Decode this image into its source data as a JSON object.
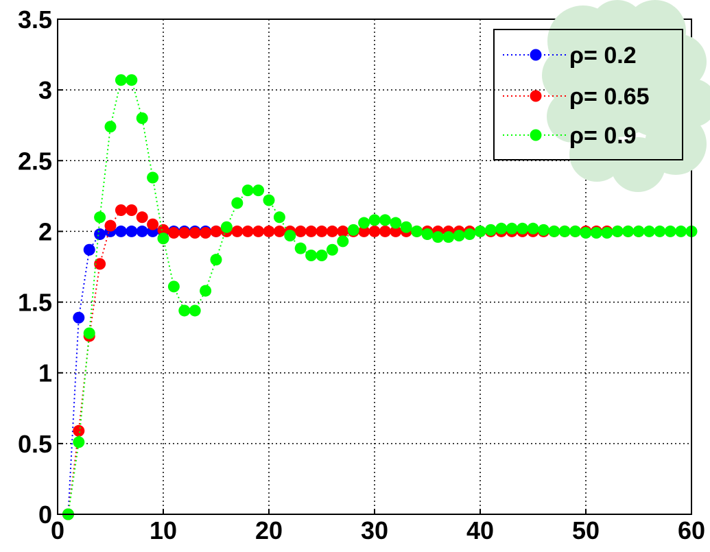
{
  "colors": {
    "blue": "#0000ff",
    "red": "#ff0000",
    "green": "#00ff00",
    "legend_blob": "#d5ecd6",
    "background": "#ffffff",
    "axes": "#000000"
  },
  "chart_data": {
    "type": "line",
    "title": "",
    "xlabel": "",
    "ylabel": "",
    "xlim": [
      0,
      60
    ],
    "ylim": [
      0,
      3.5
    ],
    "xticks": [
      "0",
      "10",
      "20",
      "30",
      "40",
      "50",
      "60"
    ],
    "yticks": [
      "0",
      "0.5",
      "1",
      "1.5",
      "2",
      "2.5",
      "3",
      "3.5"
    ],
    "grid": true,
    "line_style": "dotted with filled circle markers",
    "legend_position": "top-right",
    "series": [
      {
        "name": "ρ= 0.2",
        "color": "#0000ff",
        "x": [
          1,
          2,
          3,
          4,
          5,
          6,
          7,
          8,
          9,
          10,
          11,
          12,
          13,
          14,
          15
        ],
        "y": [
          0.0,
          1.39,
          1.87,
          1.98,
          2.0,
          2.0,
          2.0,
          2.0,
          2.0,
          2.0,
          2.0,
          2.0,
          2.0,
          2.0,
          2.0
        ]
      },
      {
        "name": "ρ= 0.65",
        "color": "#ff0000",
        "x": [
          1,
          2,
          3,
          4,
          5,
          6,
          7,
          8,
          9,
          10,
          11,
          12,
          13,
          14,
          15,
          16,
          17,
          18,
          19,
          20,
          21,
          22,
          23,
          24,
          25,
          26,
          27,
          28,
          29,
          30,
          31,
          32,
          33,
          34,
          35,
          36,
          37,
          38,
          39,
          40,
          41,
          42,
          43,
          44,
          45,
          46,
          47,
          48,
          49,
          50,
          51,
          52,
          53,
          54,
          55
        ],
        "y": [
          0.0,
          0.59,
          1.26,
          1.77,
          2.04,
          2.15,
          2.15,
          2.1,
          2.05,
          2.01,
          1.99,
          1.99,
          1.99,
          1.99,
          2.0,
          2.0,
          2.0,
          2.0,
          2.0,
          2.0,
          2.0,
          2.0,
          2.0,
          2.0,
          2.0,
          2.0,
          2.0,
          2.0,
          2.0,
          2.0,
          2.0,
          2.0,
          2.0,
          2.0,
          2.0,
          2.0,
          2.0,
          2.0,
          2.0,
          2.0,
          2.0,
          2.0,
          2.0,
          2.0,
          2.0,
          2.0,
          2.0,
          2.0,
          2.0,
          2.0,
          2.0,
          2.0,
          2.0,
          2.0,
          2.0
        ]
      },
      {
        "name": "ρ= 0.9",
        "color": "#00ff00",
        "x": [
          1,
          2,
          3,
          4,
          5,
          6,
          7,
          8,
          9,
          10,
          11,
          12,
          13,
          14,
          15,
          16,
          17,
          18,
          19,
          20,
          21,
          22,
          23,
          24,
          25,
          26,
          27,
          28,
          29,
          30,
          31,
          32,
          33,
          34,
          35,
          36,
          37,
          38,
          39,
          40,
          41,
          42,
          43,
          44,
          45,
          46,
          47,
          48,
          49,
          50,
          51,
          52,
          53,
          54,
          55,
          56,
          57,
          58,
          59,
          60
        ],
        "y": [
          0.0,
          0.51,
          1.28,
          2.1,
          2.74,
          3.07,
          3.07,
          2.8,
          2.38,
          1.95,
          1.61,
          1.44,
          1.44,
          1.58,
          1.8,
          2.03,
          2.2,
          2.29,
          2.29,
          2.22,
          2.1,
          1.97,
          1.88,
          1.83,
          1.83,
          1.87,
          1.93,
          2.01,
          2.06,
          2.08,
          2.08,
          2.06,
          2.03,
          2.0,
          1.98,
          1.96,
          1.96,
          1.97,
          1.98,
          2.0,
          2.01,
          2.02,
          2.02,
          2.02,
          2.02,
          2.01,
          2.0,
          2.0,
          2.0,
          1.99,
          1.99,
          1.99,
          2.0,
          2.0,
          2.0,
          2.0,
          2.0,
          2.0,
          2.0,
          2.0
        ]
      }
    ]
  }
}
